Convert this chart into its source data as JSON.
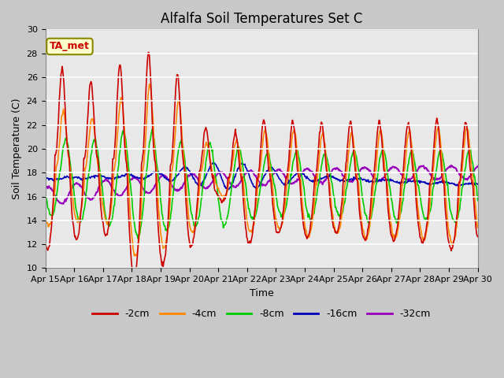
{
  "title": "Alfalfa Soil Temperatures Set C",
  "ylabel": "Soil Temperature (C)",
  "xlabel": "Time",
  "ylim": [
    10,
    30
  ],
  "xlim": [
    0,
    15
  ],
  "x_tick_labels": [
    "Apr 15",
    "Apr 16",
    "Apr 17",
    "Apr 18",
    "Apr 19",
    "Apr 20",
    "Apr 21",
    "Apr 22",
    "Apr 23",
    "Apr 24",
    "Apr 25",
    "Apr 26",
    "Apr 27",
    "Apr 28",
    "Apr 29",
    "Apr 30"
  ],
  "bg_color": "#e8e8e8",
  "series": {
    "-2cm": {
      "color": "#cc0000",
      "lw": 1.2
    },
    "-4cm": {
      "color": "#ff8800",
      "lw": 1.2
    },
    "-8cm": {
      "color": "#00cc00",
      "lw": 1.2
    },
    "-16cm": {
      "color": "#0000bb",
      "lw": 1.2
    },
    "-32cm": {
      "color": "#9900bb",
      "lw": 1.5
    }
  },
  "annotation": {
    "text": "TA_met",
    "fontsize": 9,
    "color": "#cc0000",
    "bg": "#ffffcc",
    "border": "#888800"
  },
  "title_fontsize": 12,
  "axis_fontsize": 9,
  "tick_fontsize": 8,
  "legend_fontsize": 9,
  "figsize": [
    6.4,
    4.8
  ],
  "dpi": 100
}
